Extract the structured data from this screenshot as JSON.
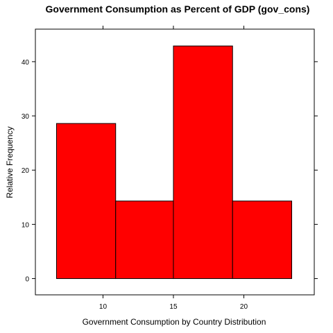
{
  "chart_data": {
    "type": "bar",
    "title": "Government Consumption as Percent of GDP (gov_cons)",
    "xlabel": "Government Consumption by Country Distribution",
    "ylabel": "Relative Frequency",
    "bins": [
      {
        "start": 6.7,
        "end": 10.9,
        "value": 28.6
      },
      {
        "start": 10.9,
        "end": 15.0,
        "value": 14.3
      },
      {
        "start": 15.0,
        "end": 19.2,
        "value": 42.9
      },
      {
        "start": 19.2,
        "end": 23.4,
        "value": 14.3
      }
    ],
    "x_ticks": [
      10,
      15,
      20
    ],
    "y_ticks": [
      0,
      10,
      20,
      30,
      40
    ],
    "xlim": [
      5.2,
      25.0
    ],
    "ylim": [
      -3.0,
      46.0
    ],
    "bar_color": "#ff0000",
    "grid": false,
    "legend": "none"
  }
}
